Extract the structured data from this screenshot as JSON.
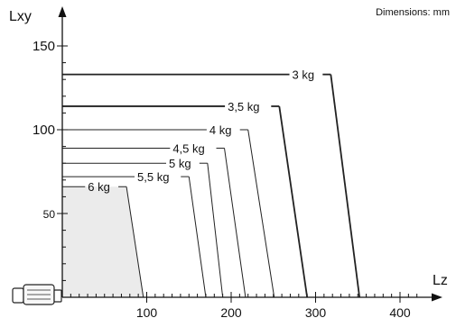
{
  "note": "Dimensions: mm",
  "chart_data": {
    "type": "line",
    "xlabel": "Lz",
    "ylabel": "Lxy",
    "xlim": [
      -50,
      450
    ],
    "ylim": [
      0,
      160
    ],
    "x_ticks": [
      100,
      200,
      300,
      400
    ],
    "y_ticks": [
      50,
      100,
      150
    ],
    "x_minor_step": 10,
    "y_minor_step": 10,
    "shaded_series": "6 kg",
    "shade_color": "#ebebeb",
    "series": [
      {
        "name": "3 kg",
        "label": "3 kg",
        "lxy": 133,
        "lz_top": 318,
        "lz_bottom": 352,
        "bold": true
      },
      {
        "name": "3,5 kg",
        "label": "3,5 kg",
        "lxy": 114,
        "lz_top": 257,
        "lz_bottom": 290,
        "bold": true
      },
      {
        "name": "4 kg",
        "label": "4 kg",
        "lxy": 100,
        "lz_top": 220,
        "lz_bottom": 251,
        "bold": false
      },
      {
        "name": "4,5 kg",
        "label": "4,5 kg",
        "lxy": 89,
        "lz_top": 192,
        "lz_bottom": 217,
        "bold": false
      },
      {
        "name": "5 kg",
        "label": "5 kg",
        "lxy": 80,
        "lz_top": 172,
        "lz_bottom": 190,
        "bold": false
      },
      {
        "name": "5,5 kg",
        "label": "5,5 kg",
        "lxy": 72,
        "lz_top": 150,
        "lz_bottom": 170,
        "bold": false
      },
      {
        "name": "6 kg",
        "label": "6 kg",
        "lxy": 66,
        "lz_top": 76,
        "lz_bottom": 96,
        "bold": false
      }
    ]
  }
}
